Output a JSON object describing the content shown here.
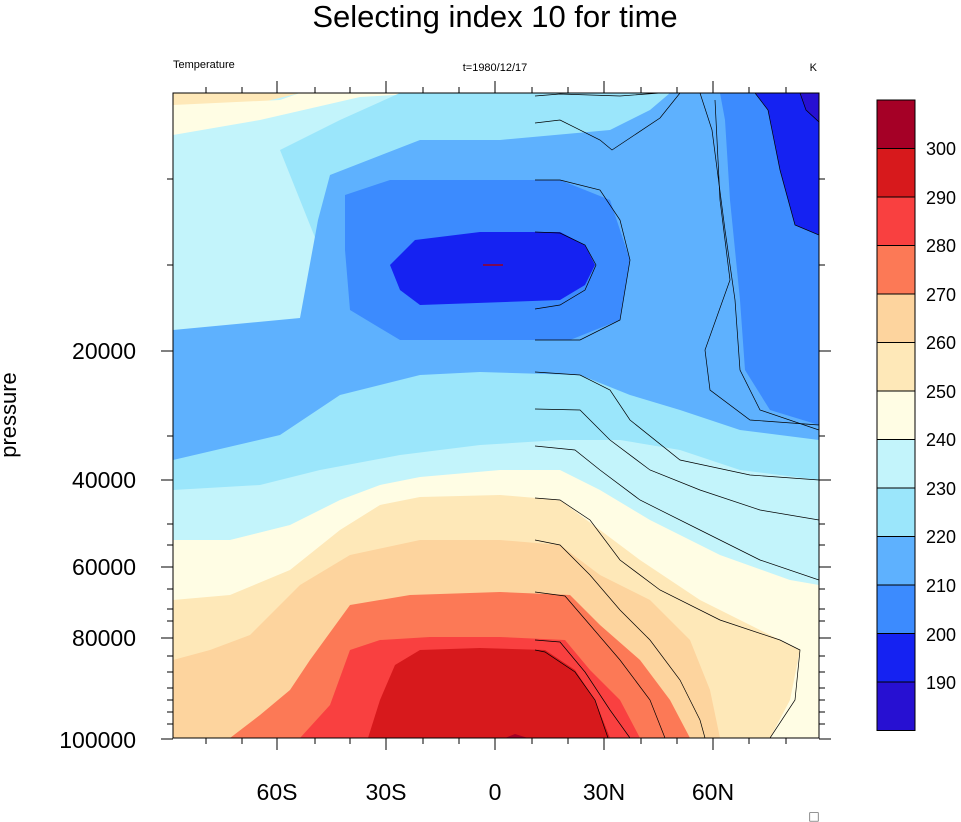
{
  "chart_data": {
    "type": "heatmap",
    "title": "Selecting index 10 for time",
    "left_string": "Temperature",
    "center_string": "t=1980/12/17",
    "right_string": "K",
    "xlabel": "",
    "ylabel": "pressure",
    "x_tick_labels": [
      "60S",
      "30S",
      "0",
      "30N",
      "60N"
    ],
    "y_tick_labels": [
      "20000",
      "40000",
      "60000",
      "80000",
      "100000"
    ],
    "colorbar": {
      "labels": [
        "300",
        "290",
        "280",
        "270",
        "260",
        "250",
        "240",
        "230",
        "220",
        "210",
        "200",
        "190"
      ],
      "colors": [
        "#a50026",
        "#d7191c",
        "#f94040",
        "#fc7956",
        "#fdd49e",
        "#fee8b8",
        "#fffde4",
        "#c3f4fb",
        "#9be6fb",
        "#5eb1fe",
        "#3c8bfe",
        "#1522f2",
        "#2710d2"
      ]
    },
    "footer_mark": "□"
  }
}
